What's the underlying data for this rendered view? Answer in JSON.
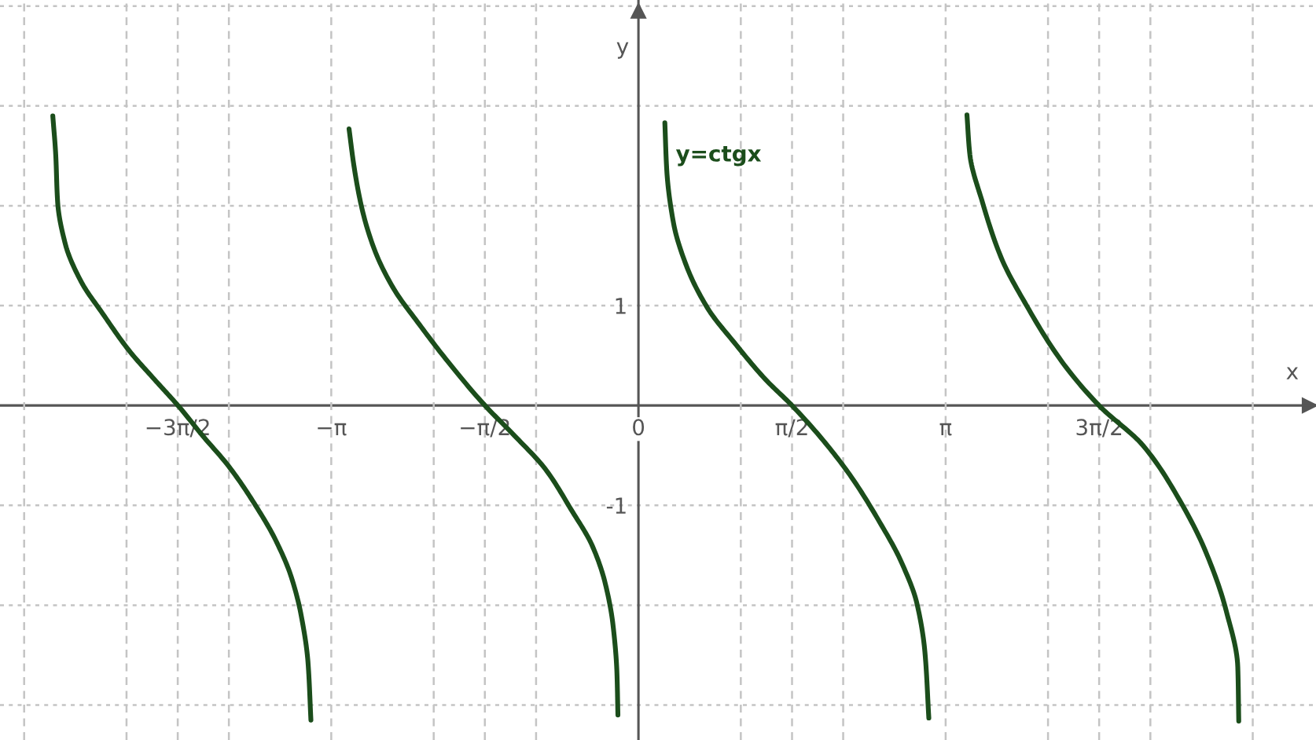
{
  "chart_data": {
    "type": "line",
    "xlabel": "x",
    "ylabel": "y",
    "xlim": [
      -6.53,
      6.93
    ],
    "ylim": [
      -3.35,
      4.06
    ],
    "grid": true,
    "xticks": [
      {
        "value": -6.283,
        "label": null
      },
      {
        "value": -5.236,
        "label": null
      },
      {
        "value": -4.712,
        "label": "−3π/2"
      },
      {
        "value": -4.189,
        "label": null
      },
      {
        "value": -3.142,
        "label": "−π"
      },
      {
        "value": -2.094,
        "label": null
      },
      {
        "value": -1.571,
        "label": "−π/2"
      },
      {
        "value": -1.047,
        "label": null
      },
      {
        "value": 0,
        "label": "0"
      },
      {
        "value": 1.047,
        "label": null
      },
      {
        "value": 1.571,
        "label": "π/2"
      },
      {
        "value": 2.094,
        "label": null
      },
      {
        "value": 3.142,
        "label": "π"
      },
      {
        "value": 4.189,
        "label": null
      },
      {
        "value": 4.712,
        "label": "3π/2"
      },
      {
        "value": 5.236,
        "label": null
      },
      {
        "value": 6.283,
        "label": null
      }
    ],
    "yticks": [
      {
        "value": -3,
        "label": null
      },
      {
        "value": -2,
        "label": null
      },
      -1,
      1,
      {
        "value": 2,
        "label": null
      },
      {
        "value": 3,
        "label": null
      },
      {
        "value": 4,
        "label": null
      }
    ],
    "series": [
      {
        "color": "#1b4d1b",
        "x": [
          -5.99,
          -5.96,
          -5.94,
          -5.86,
          -5.7,
          -5.48,
          -5.21,
          -4.95,
          -4.71,
          -4.46,
          -4.19,
          -3.93,
          -3.71,
          -3.55,
          -3.45,
          -3.38,
          -3.35
        ],
        "values": [
          2.9,
          2.51,
          2.03,
          1.61,
          1.24,
          0.92,
          0.55,
          0.26,
          0,
          -0.3,
          -0.61,
          -0.98,
          -1.35,
          -1.72,
          -2.1,
          -2.57,
          -3.15
        ]
      },
      {
        "color": "#1b4d1b",
        "x": [
          -2.96,
          -2.91,
          -2.83,
          -2.7,
          -2.51,
          -2.24,
          -1.95,
          -1.57,
          -1.27,
          -0.95,
          -0.69,
          -0.47,
          -0.34,
          -0.26,
          -0.22,
          -0.21
        ],
        "values": [
          2.77,
          2.4,
          1.98,
          1.56,
          1.18,
          0.81,
          0.44,
          0,
          -0.3,
          -0.64,
          -1.04,
          -1.41,
          -1.78,
          -2.2,
          -2.68,
          -3.1
        ]
      },
      {
        "name": "y=ctgx",
        "color": "#1b4d1b",
        "x": [
          0.27,
          0.29,
          0.36,
          0.49,
          0.71,
          0.98,
          1.3,
          1.57,
          1.89,
          2.18,
          2.45,
          2.69,
          2.85,
          2.93,
          2.97
        ],
        "values": [
          2.83,
          2.35,
          1.82,
          1.4,
          0.97,
          0.63,
          0.26,
          0,
          -0.35,
          -0.72,
          -1.14,
          -1.57,
          -1.99,
          -2.47,
          -3.13
        ]
      },
      {
        "color": "#1b4d1b",
        "x": [
          3.36,
          3.39,
          3.52,
          3.71,
          3.97,
          4.33,
          4.71,
          5.16,
          5.53,
          5.8,
          6.01,
          6.13,
          6.14
        ],
        "values": [
          2.91,
          2.51,
          2.03,
          1.48,
          1.0,
          0.44,
          0,
          -0.4,
          -0.94,
          -1.46,
          -2.05,
          -2.62,
          -3.16
        ]
      }
    ]
  }
}
